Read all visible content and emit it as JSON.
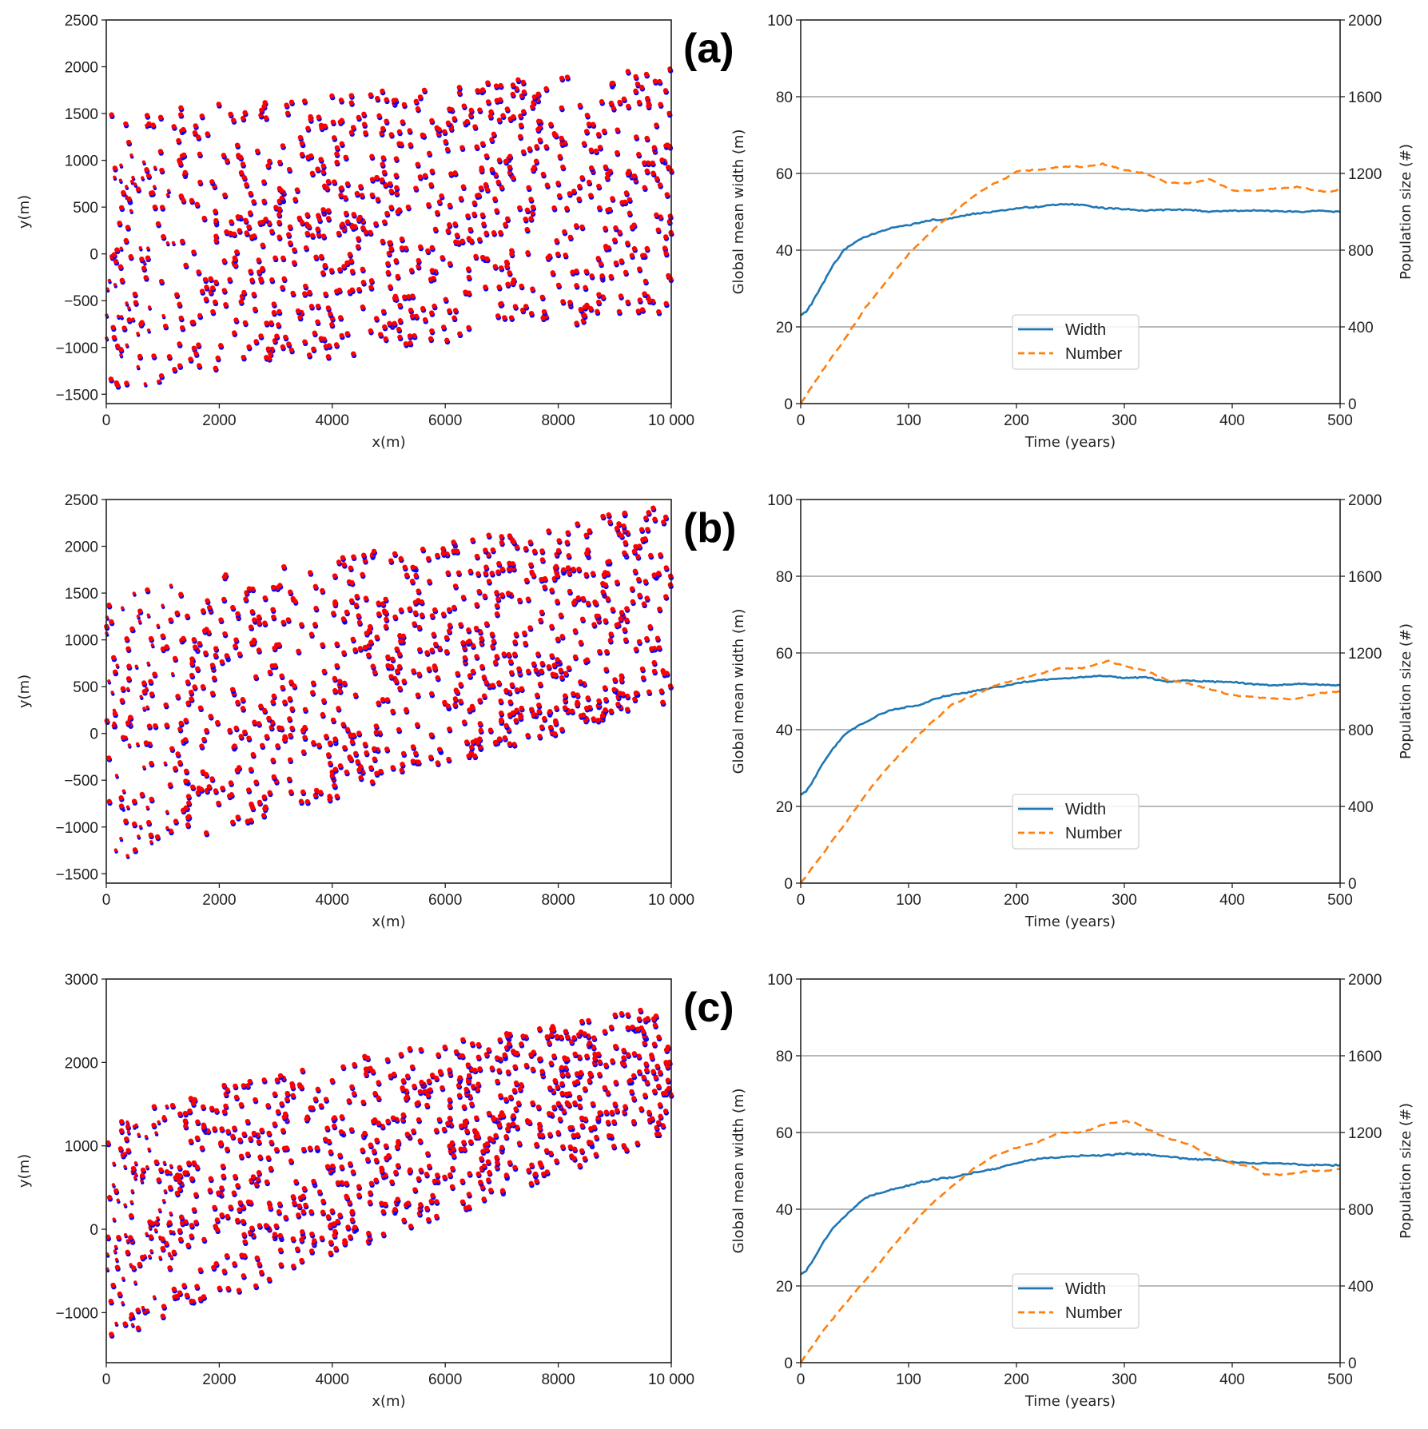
{
  "figure": {
    "colors": {
      "width_line": "#1f77b4",
      "number_line": "#ff7f0e",
      "scatter_red": "#ff0000",
      "scatter_blue": "#0000ff",
      "grid": "#b0b0b0"
    }
  },
  "chart_data": [
    {
      "panel": "(a)",
      "type": "scatter",
      "title": "",
      "xlabel": "x(m)",
      "ylabel": "y(m)",
      "xlim": [
        0,
        10000
      ],
      "ylim": [
        -1600,
        2500
      ],
      "xticks": [
        0,
        2000,
        4000,
        6000,
        8000,
        10000
      ],
      "xtick_labels": [
        "0",
        "2000",
        "4000",
        "6000",
        "8000",
        "10 000"
      ],
      "yticks": [
        -1500,
        -1000,
        -500,
        0,
        500,
        1000,
        1500,
        2000,
        2500
      ],
      "ytick_labels": [
        "−1500",
        "−1000",
        "−500",
        "0",
        "500",
        "1000",
        "1500",
        "2000",
        "2500"
      ],
      "band": {
        "left_low": -1450,
        "left_high": 1500,
        "right_low": -600,
        "right_high": 2000
      },
      "series": [
        {
          "name": "red markers",
          "color": "#ff0000"
        },
        {
          "name": "blue markers",
          "color": "#0000ff"
        }
      ],
      "point_count_approx": 900,
      "seed": 11
    },
    {
      "panel": "(a)",
      "type": "line",
      "title": "",
      "xlabel": "Time (years)",
      "ylabel": "Global mean width (m)",
      "ylabel_right": "Population size (#)",
      "xlim": [
        0,
        500
      ],
      "ylim": [
        0,
        100
      ],
      "ylim_right": [
        0,
        2000
      ],
      "xticks": [
        0,
        100,
        200,
        300,
        400,
        500
      ],
      "yticks": [
        0,
        20,
        40,
        60,
        80,
        100
      ],
      "yticks_right": [
        0,
        400,
        800,
        1200,
        1600,
        2000
      ],
      "grid": "horizontal",
      "legend": {
        "position": "lower-center",
        "entries": [
          "Width",
          "Number"
        ]
      },
      "series": [
        {
          "name": "Width",
          "axis": "left",
          "style": "solid",
          "x": [
            0,
            5,
            10,
            20,
            30,
            40,
            50,
            60,
            70,
            80,
            90,
            100,
            110,
            120,
            130,
            140,
            160,
            180,
            200,
            220,
            240,
            250,
            260,
            280,
            300,
            320,
            340,
            360,
            380,
            400,
            420,
            440,
            460,
            480,
            500
          ],
          "y": [
            23,
            24,
            26,
            31,
            36,
            40,
            42,
            43.5,
            44.5,
            45.5,
            46,
            46.5,
            47.2,
            47.8,
            48,
            48.3,
            49.5,
            50,
            51,
            51.3,
            52,
            52,
            51.8,
            51,
            50.7,
            50.3,
            50.5,
            50.5,
            50,
            50.3,
            50.3,
            50.2,
            50,
            50.2,
            50
          ]
        },
        {
          "name": "Number",
          "axis": "right",
          "style": "dashed",
          "x": [
            0,
            20,
            40,
            60,
            80,
            100,
            120,
            140,
            160,
            180,
            190,
            200,
            220,
            240,
            260,
            280,
            300,
            320,
            340,
            360,
            380,
            400,
            420,
            440,
            460,
            480,
            490,
            500
          ],
          "y": [
            0,
            170,
            330,
            500,
            640,
            780,
            890,
            990,
            1080,
            1150,
            1175,
            1210,
            1220,
            1235,
            1235,
            1250,
            1220,
            1200,
            1150,
            1150,
            1170,
            1110,
            1110,
            1120,
            1130,
            1110,
            1100,
            1120
          ]
        }
      ]
    },
    {
      "panel": "(b)",
      "type": "scatter",
      "title": "",
      "xlabel": "x(m)",
      "ylabel": "y(m)",
      "xlim": [
        0,
        10000
      ],
      "ylim": [
        -1600,
        2500
      ],
      "xticks": [
        0,
        2000,
        4000,
        6000,
        8000,
        10000
      ],
      "xtick_labels": [
        "0",
        "2000",
        "4000",
        "6000",
        "8000",
        "10 000"
      ],
      "yticks": [
        -1500,
        -1000,
        -500,
        0,
        500,
        1000,
        1500,
        2000,
        2500
      ],
      "ytick_labels": [
        "−1500",
        "−1000",
        "−500",
        "0",
        "500",
        "1000",
        "1500",
        "2000",
        "2500"
      ],
      "band": {
        "left_low": -1400,
        "left_high": 1500,
        "right_low": 350,
        "right_high": 2450
      },
      "series": [
        {
          "name": "red markers",
          "color": "#ff0000"
        },
        {
          "name": "blue markers",
          "color": "#0000ff"
        }
      ],
      "point_count_approx": 900,
      "seed": 23
    },
    {
      "panel": "(b)",
      "type": "line",
      "title": "",
      "xlabel": "Time (years)",
      "ylabel": "Global mean width (m)",
      "ylabel_right": "Population size (#)",
      "xlim": [
        0,
        500
      ],
      "ylim": [
        0,
        100
      ],
      "ylim_right": [
        0,
        2000
      ],
      "xticks": [
        0,
        100,
        200,
        300,
        400,
        500
      ],
      "yticks": [
        0,
        20,
        40,
        60,
        80,
        100
      ],
      "yticks_right": [
        0,
        400,
        800,
        1200,
        1600,
        2000
      ],
      "grid": "horizontal",
      "legend": {
        "position": "lower-center",
        "entries": [
          "Width",
          "Number"
        ]
      },
      "series": [
        {
          "name": "Width",
          "axis": "left",
          "style": "solid",
          "x": [
            0,
            5,
            10,
            20,
            30,
            40,
            50,
            60,
            70,
            80,
            90,
            100,
            110,
            120,
            130,
            140,
            160,
            180,
            200,
            220,
            240,
            260,
            280,
            300,
            320,
            340,
            360,
            380,
            400,
            420,
            440,
            460,
            480,
            500
          ],
          "y": [
            23,
            24,
            26,
            31,
            35,
            38.5,
            40.5,
            42,
            43.5,
            44.8,
            45.5,
            46,
            46.5,
            47.5,
            48.5,
            49,
            50,
            51,
            52,
            53,
            53.2,
            53.7,
            54,
            53.5,
            53.7,
            52.5,
            52.8,
            52.5,
            52.5,
            51.8,
            51.6,
            52,
            51.8,
            51.5
          ]
        },
        {
          "name": "Number",
          "axis": "right",
          "style": "dashed",
          "x": [
            0,
            20,
            40,
            60,
            80,
            100,
            120,
            140,
            160,
            180,
            200,
            220,
            240,
            260,
            280,
            285,
            300,
            320,
            340,
            360,
            380,
            400,
            420,
            440,
            460,
            480,
            500
          ],
          "y": [
            0,
            150,
            300,
            460,
            600,
            720,
            830,
            930,
            980,
            1030,
            1060,
            1090,
            1120,
            1120,
            1150,
            1160,
            1130,
            1110,
            1060,
            1040,
            1010,
            980,
            970,
            960,
            960,
            990,
            1000
          ]
        }
      ]
    },
    {
      "panel": "(c)",
      "type": "scatter",
      "title": "",
      "xlabel": "x(m)",
      "ylabel": "y(m)",
      "xlim": [
        0,
        10000
      ],
      "ylim": [
        -1600,
        3000
      ],
      "xticks": [
        0,
        2000,
        4000,
        6000,
        8000,
        10000
      ],
      "xtick_labels": [
        "0",
        "2000",
        "4000",
        "6000",
        "8000",
        "10 000"
      ],
      "yticks": [
        -1000,
        0,
        1000,
        2000,
        3000
      ],
      "ytick_labels": [
        "−1000",
        "0",
        "1000",
        "2000",
        "3000"
      ],
      "band": {
        "left_low": -1350,
        "left_high": 1550,
        "right_low": 1150,
        "right_high": 2700
      },
      "series": [
        {
          "name": "red markers",
          "color": "#ff0000"
        },
        {
          "name": "blue markers",
          "color": "#0000ff"
        }
      ],
      "point_count_approx": 900,
      "seed": 37
    },
    {
      "panel": "(c)",
      "type": "line",
      "title": "",
      "xlabel": "Time (years)",
      "ylabel": "Global mean width (m)",
      "ylabel_right": "Population size (#)",
      "xlim": [
        0,
        500
      ],
      "ylim": [
        0,
        100
      ],
      "ylim_right": [
        0,
        2000
      ],
      "xticks": [
        0,
        100,
        200,
        300,
        400,
        500
      ],
      "yticks": [
        0,
        20,
        40,
        60,
        80,
        100
      ],
      "yticks_right": [
        0,
        400,
        800,
        1200,
        1600,
        2000
      ],
      "grid": "horizontal",
      "legend": {
        "position": "lower-center",
        "entries": [
          "Width",
          "Number"
        ]
      },
      "series": [
        {
          "name": "Width",
          "axis": "left",
          "style": "solid",
          "x": [
            0,
            5,
            10,
            20,
            30,
            40,
            50,
            60,
            70,
            80,
            90,
            100,
            110,
            120,
            130,
            140,
            160,
            180,
            200,
            220,
            240,
            260,
            280,
            300,
            320,
            340,
            360,
            380,
            400,
            420,
            440,
            460,
            480,
            500
          ],
          "y": [
            23,
            24,
            26,
            31,
            35,
            38,
            40.5,
            43,
            44,
            44.8,
            45.5,
            46.2,
            47,
            47.5,
            48,
            48.3,
            49.5,
            50.5,
            52,
            53.2,
            53.5,
            54,
            54,
            54.5,
            54.3,
            53.8,
            53,
            53,
            52.3,
            52,
            52,
            51.7,
            51.5,
            51.5
          ]
        },
        {
          "name": "Number",
          "axis": "right",
          "style": "dashed",
          "x": [
            0,
            20,
            40,
            60,
            80,
            100,
            120,
            140,
            160,
            180,
            200,
            220,
            240,
            260,
            280,
            300,
            310,
            320,
            340,
            360,
            380,
            400,
            420,
            430,
            450,
            470,
            490,
            500
          ],
          "y": [
            0,
            160,
            300,
            430,
            570,
            700,
            820,
            920,
            1010,
            1080,
            1120,
            1150,
            1200,
            1200,
            1240,
            1260,
            1250,
            1220,
            1170,
            1140,
            1080,
            1040,
            1020,
            980,
            980,
            1000,
            1000,
            1010
          ]
        }
      ]
    }
  ]
}
